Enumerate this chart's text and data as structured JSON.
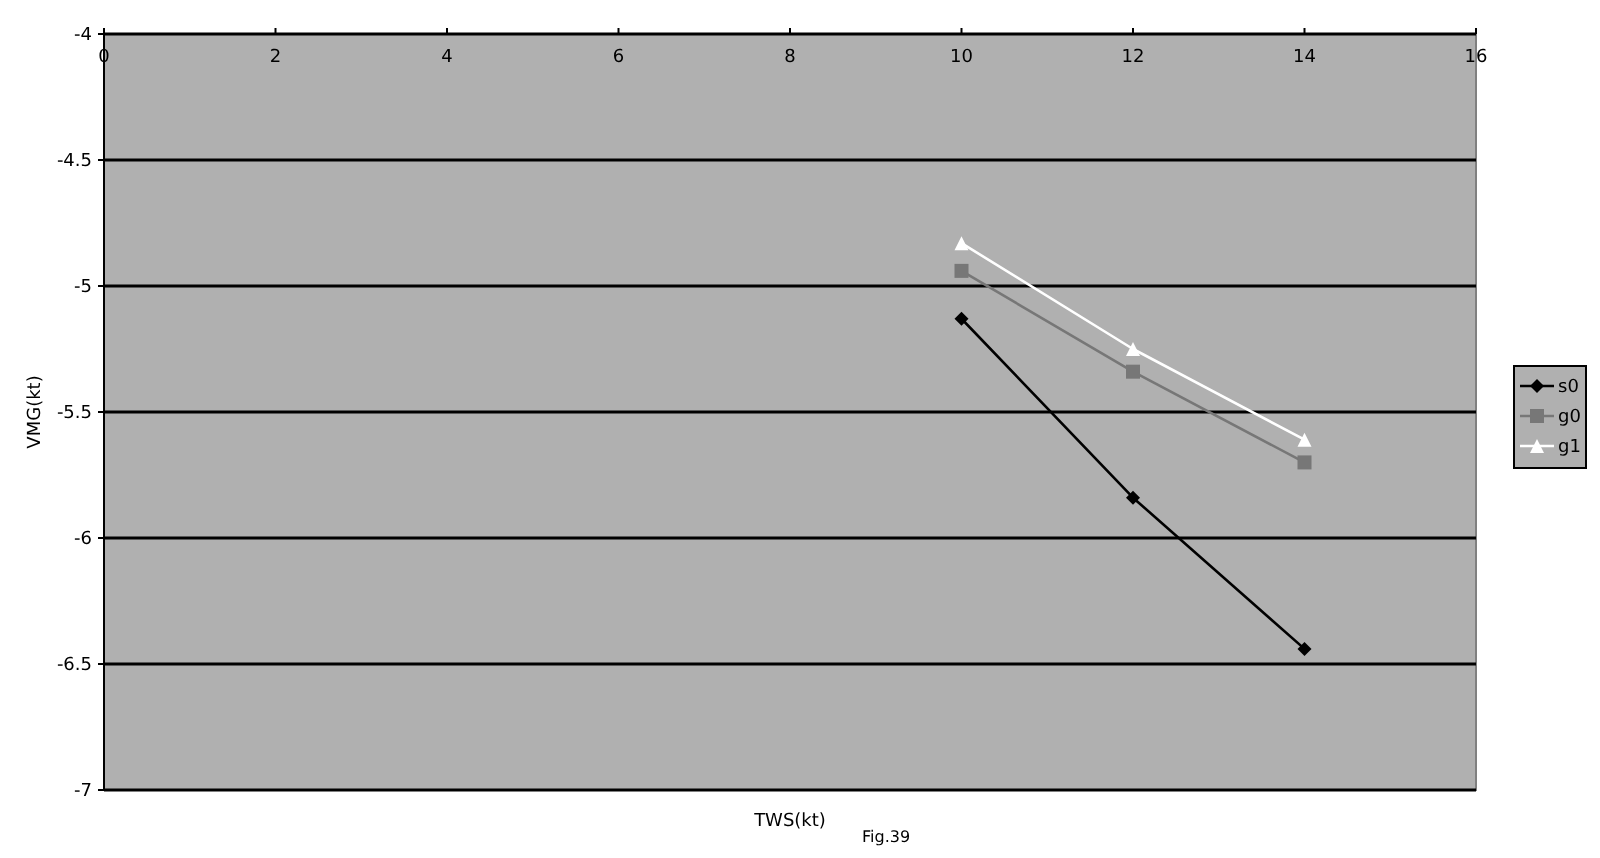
{
  "chart_data": {
    "type": "line",
    "xlabel": "TWS(kt)",
    "ylabel": "VMG(kt)",
    "annotations": [
      "Fig.39"
    ],
    "xlim": [
      0,
      16
    ],
    "xticks": [
      0,
      2,
      4,
      6,
      8,
      10,
      12,
      14,
      16
    ],
    "ylim": [
      -7,
      -4
    ],
    "yticks": [
      -7,
      -6.5,
      -6,
      -5.5,
      -5,
      -4.5,
      -4
    ],
    "grid": "y",
    "legend": "right",
    "series": [
      {
        "name": "s0",
        "color": "#000000",
        "marker": "diamond",
        "x": [
          10,
          12,
          14
        ],
        "values": [
          -5.13,
          -5.84,
          -6.44
        ]
      },
      {
        "name": "g0",
        "color": "#777777",
        "marker": "square",
        "x": [
          10,
          12,
          14
        ],
        "values": [
          -4.94,
          -5.34,
          -5.7
        ]
      },
      {
        "name": "g1",
        "color": "#ffffff",
        "marker": "triangle",
        "x": [
          10,
          12,
          14
        ],
        "values": [
          -4.83,
          -5.25,
          -5.61
        ]
      }
    ]
  }
}
